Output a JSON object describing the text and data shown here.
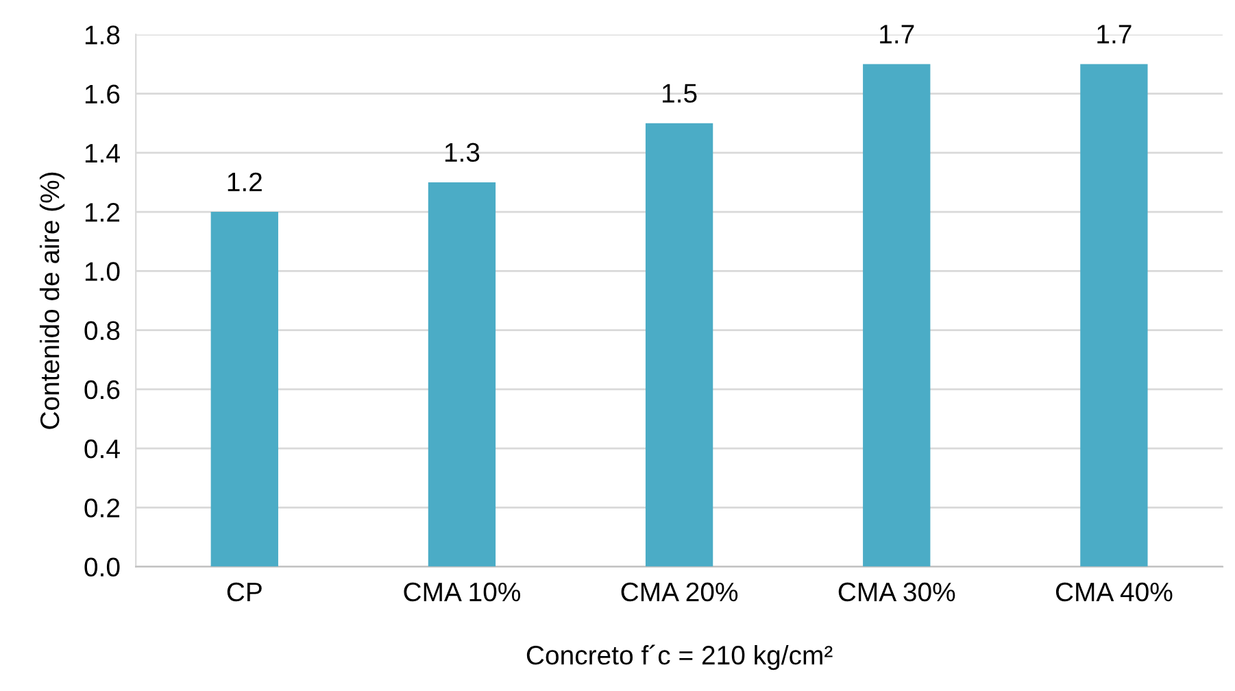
{
  "chart_data": {
    "type": "bar",
    "xlabel": "Concreto f´c = 210 kg/cm²",
    "ylabel": "Contenido de aire (%)",
    "categories": [
      "CP",
      "CMA 10%",
      "CMA 20%",
      "CMA 30%",
      "CMA 40%"
    ],
    "values": [
      1.2,
      1.3,
      1.5,
      1.7,
      1.7
    ],
    "color": "#4bacc6",
    "ylim": [
      0,
      1.8
    ],
    "yticks": [
      {
        "value": 0,
        "label": "0.0"
      },
      {
        "value": 0.2,
        "label": "0.2"
      },
      {
        "value": 0.4,
        "label": "0.4"
      },
      {
        "value": 0.6,
        "label": "0.6"
      },
      {
        "value": 0.8,
        "label": "0.8"
      },
      {
        "value": 1.0,
        "label": "1.0"
      },
      {
        "value": 1.2,
        "label": "1.2"
      },
      {
        "value": 1.4,
        "label": "1.4"
      },
      {
        "value": 1.6,
        "label": "1.6"
      },
      {
        "value": 1.8,
        "label": "1.8"
      }
    ],
    "grid": "y",
    "data_labels": true
  }
}
